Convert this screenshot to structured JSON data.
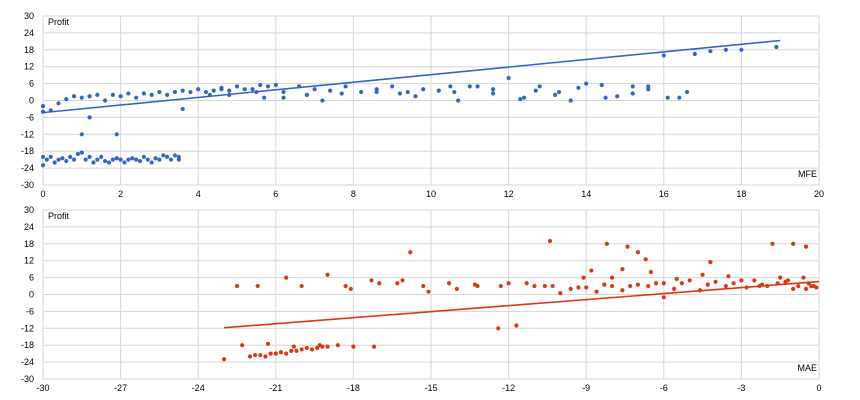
{
  "chart_data": [
    {
      "type": "scatter",
      "title": "",
      "ylabel": "Profit",
      "xlabel": "MFE",
      "xlim": [
        0,
        20
      ],
      "ylim": [
        -30,
        30
      ],
      "x_ticks": [
        "0",
        "2",
        "4",
        "6",
        "8",
        "10",
        "12",
        "14",
        "16",
        "18",
        "20"
      ],
      "y_ticks": [
        "30",
        "24",
        "18",
        "12",
        "6",
        "0",
        "-6",
        "-12",
        "-18",
        "-24",
        "-30"
      ],
      "grid": true,
      "color": "#3366cc",
      "trendline": {
        "x": [
          0,
          19
        ],
        "y": [
          -4.3,
          21.3
        ]
      },
      "series": [
        {
          "x": [
            0.0,
            0.0,
            0.0,
            0.2,
            0.4,
            0.6,
            0.8,
            1.0,
            1.2,
            1.4,
            1.6,
            1.8,
            2.0,
            2.2,
            2.4,
            2.6,
            2.8,
            3.0,
            3.2,
            3.4,
            3.6,
            3.8,
            4.0,
            4.2,
            4.4,
            4.6,
            4.8,
            5.0,
            5.2,
            5.4,
            5.6,
            5.8,
            6.0,
            6.2,
            6.6,
            7.0,
            7.4,
            7.8,
            8.2,
            8.6,
            9.0,
            9.4,
            9.8,
            10.2,
            10.6,
            11.0,
            11.6,
            12.0,
            12.4,
            12.8,
            13.2,
            13.6,
            14.0,
            14.4,
            14.8,
            15.2,
            15.6,
            16.0,
            16.4,
            16.8,
            17.2,
            17.6,
            18.0,
            18.9,
            0.1,
            0.2,
            0.3,
            0.4,
            0.5,
            0.6,
            0.7,
            0.8,
            0.9,
            1.0,
            1.1,
            1.2,
            1.3,
            1.4,
            1.5,
            1.6,
            1.7,
            1.8,
            1.9,
            2.0,
            2.1,
            2.2,
            2.3,
            2.4,
            2.5,
            2.6,
            2.7,
            2.8,
            2.9,
            3.0,
            3.1,
            3.2,
            3.3,
            3.4,
            3.5,
            1.0,
            1.2,
            1.9,
            0.0,
            3.5,
            4.3,
            4.6,
            5.5,
            6.2,
            6.8,
            7.2,
            9.2,
            10.7,
            11.2,
            12.3,
            13.3,
            14.5,
            15.2,
            16.1,
            16.6,
            3.6,
            4.8,
            5.7,
            6.6,
            7.7,
            8.6,
            9.6,
            10.5,
            11.6,
            12.7,
            13.8,
            15.6
          ],
          "y": [
            -2.0,
            -4.0,
            -20.0,
            -3.5,
            -1.0,
            0.5,
            1.5,
            1.0,
            1.5,
            2.0,
            0.0,
            2.0,
            1.5,
            2.5,
            1.0,
            2.5,
            2.0,
            3.0,
            2.0,
            3.0,
            3.5,
            3.0,
            4.0,
            3.0,
            3.5,
            4.0,
            3.5,
            5.0,
            4.0,
            4.0,
            5.5,
            5.0,
            5.5,
            3.0,
            5.0,
            4.0,
            3.5,
            5.0,
            3.0,
            3.0,
            5.0,
            3.0,
            4.0,
            3.5,
            3.0,
            5.0,
            4.0,
            8.0,
            1.0,
            5.0,
            2.0,
            0.0,
            6.0,
            5.5,
            1.5,
            5.0,
            4.0,
            16.0,
            1.0,
            16.5,
            17.5,
            18.0,
            18.0,
            19.0,
            -21.0,
            -20.0,
            -22.0,
            -21.0,
            -20.5,
            -21.5,
            -20.0,
            -21.0,
            -19.0,
            -18.5,
            -21.0,
            -20.0,
            -22.0,
            -21.0,
            -20.0,
            -21.5,
            -22.0,
            -21.0,
            -20.5,
            -21.0,
            -22.0,
            -21.0,
            -20.5,
            -21.0,
            -21.5,
            -20.0,
            -21.0,
            -22.0,
            -20.5,
            -21.0,
            -19.5,
            -20.0,
            -21.0,
            -19.5,
            -20.0,
            -12.0,
            -6.0,
            -12.0,
            -23.0,
            -21.0,
            2.0,
            4.5,
            3.0,
            1.0,
            2.0,
            0.0,
            2.5,
            0.0,
            5.0,
            0.5,
            3.0,
            1.0,
            2.5,
            1.0,
            3.0,
            -3.0,
            2.0,
            1.0,
            5.0,
            2.5,
            4.0,
            1.5,
            5.0,
            2.5,
            3.5,
            4.5,
            5.0
          ]
        }
      ]
    },
    {
      "type": "scatter",
      "title": "",
      "ylabel": "Profit",
      "xlabel": "MAE",
      "xlim": [
        -30,
        0
      ],
      "ylim": [
        -30,
        30
      ],
      "x_ticks": [
        "-30",
        "-27",
        "-24",
        "-21",
        "-18",
        "-15",
        "-12",
        "-9",
        "-6",
        "-3",
        "0"
      ],
      "y_ticks": [
        "30",
        "24",
        "18",
        "12",
        "6",
        "0",
        "-6",
        "-12",
        "-18",
        "-24",
        "-30"
      ],
      "grid": true,
      "color": "#dc3912",
      "trendline": {
        "x": [
          -23,
          0
        ],
        "y": [
          -11.8,
          4.6
        ]
      },
      "series": [
        {
          "x": [
            -23.0,
            -22.0,
            -21.8,
            -21.6,
            -21.4,
            -21.2,
            -21.0,
            -20.8,
            -20.6,
            -20.4,
            -20.2,
            -20.0,
            -19.8,
            -19.6,
            -19.4,
            -19.2,
            -19.0,
            -22.3,
            -21.3,
            -20.3,
            -19.3,
            -18.6,
            -18.0,
            -17.2,
            -15.8,
            -21.7,
            -20.6,
            -20.0,
            -19.0,
            -18.3,
            -17.3,
            -16.3,
            -15.3,
            -14.3,
            -13.3,
            -12.3,
            -11.3,
            -10.3,
            -9.3,
            -8.3,
            -7.3,
            -6.3,
            -5.3,
            -4.3,
            -3.3,
            -2.3,
            -1.3,
            -0.3,
            -12.4,
            -11.7,
            -10.4,
            -9.1,
            -8.2,
            -7.4,
            -7.0,
            -6.7,
            -6.0,
            -4.2,
            -1.8,
            -1.0,
            -0.5,
            -22.5,
            -18.1,
            -17.0,
            -16.1,
            -15.1,
            -14.0,
            -13.2,
            -12.0,
            -11.0,
            -10.0,
            -9.0,
            -8.0,
            -7.0,
            -6.0,
            -5.0,
            -4.0,
            -3.0,
            -2.0,
            -1.0,
            -0.1,
            -8.8,
            -8.0,
            -7.6,
            -6.5,
            -5.5,
            -4.5,
            -3.5,
            -2.5,
            -1.5,
            -0.5,
            -0.2,
            -0.4,
            -0.6,
            -0.8,
            -1.2,
            -1.6,
            -2.2,
            -2.8,
            -3.6,
            -4.6,
            -5.6,
            -6.6,
            -7.6,
            -8.6,
            -9.6,
            -10.6
          ],
          "y": [
            -23.0,
            -22.0,
            -21.5,
            -21.5,
            -22.0,
            -21.0,
            -21.0,
            -20.5,
            -21.0,
            -20.0,
            -20.0,
            -19.5,
            -19.0,
            -19.5,
            -19.0,
            -18.5,
            -18.5,
            -18.0,
            -17.5,
            -18.5,
            -18.0,
            -18.0,
            -18.5,
            -18.5,
            15.0,
            3.0,
            6.0,
            3.0,
            7.0,
            3.0,
            5.0,
            4.0,
            3.0,
            4.0,
            3.5,
            3.0,
            4.0,
            3.0,
            2.5,
            3.5,
            3.0,
            4.0,
            4.0,
            3.5,
            4.0,
            3.0,
            4.5,
            3.0,
            -12.0,
            -11.0,
            19.0,
            6.0,
            18.0,
            17.0,
            15.0,
            12.5,
            -1.0,
            11.5,
            18.0,
            18.0,
            17.0,
            3.0,
            2.0,
            4.0,
            5.0,
            1.0,
            2.0,
            3.0,
            4.0,
            3.0,
            0.5,
            2.5,
            3.0,
            3.5,
            4.0,
            5.0,
            4.5,
            5.0,
            3.0,
            2.0,
            2.5,
            8.5,
            6.0,
            9.0,
            8.0,
            5.5,
            7.0,
            6.5,
            5.0,
            6.0,
            2.0,
            3.0,
            4.0,
            6.0,
            3.0,
            5.0,
            4.0,
            3.5,
            2.5,
            3.0,
            1.5,
            2.0,
            3.0,
            1.5,
            1.0,
            2.0,
            3.0
          ]
        }
      ]
    }
  ]
}
